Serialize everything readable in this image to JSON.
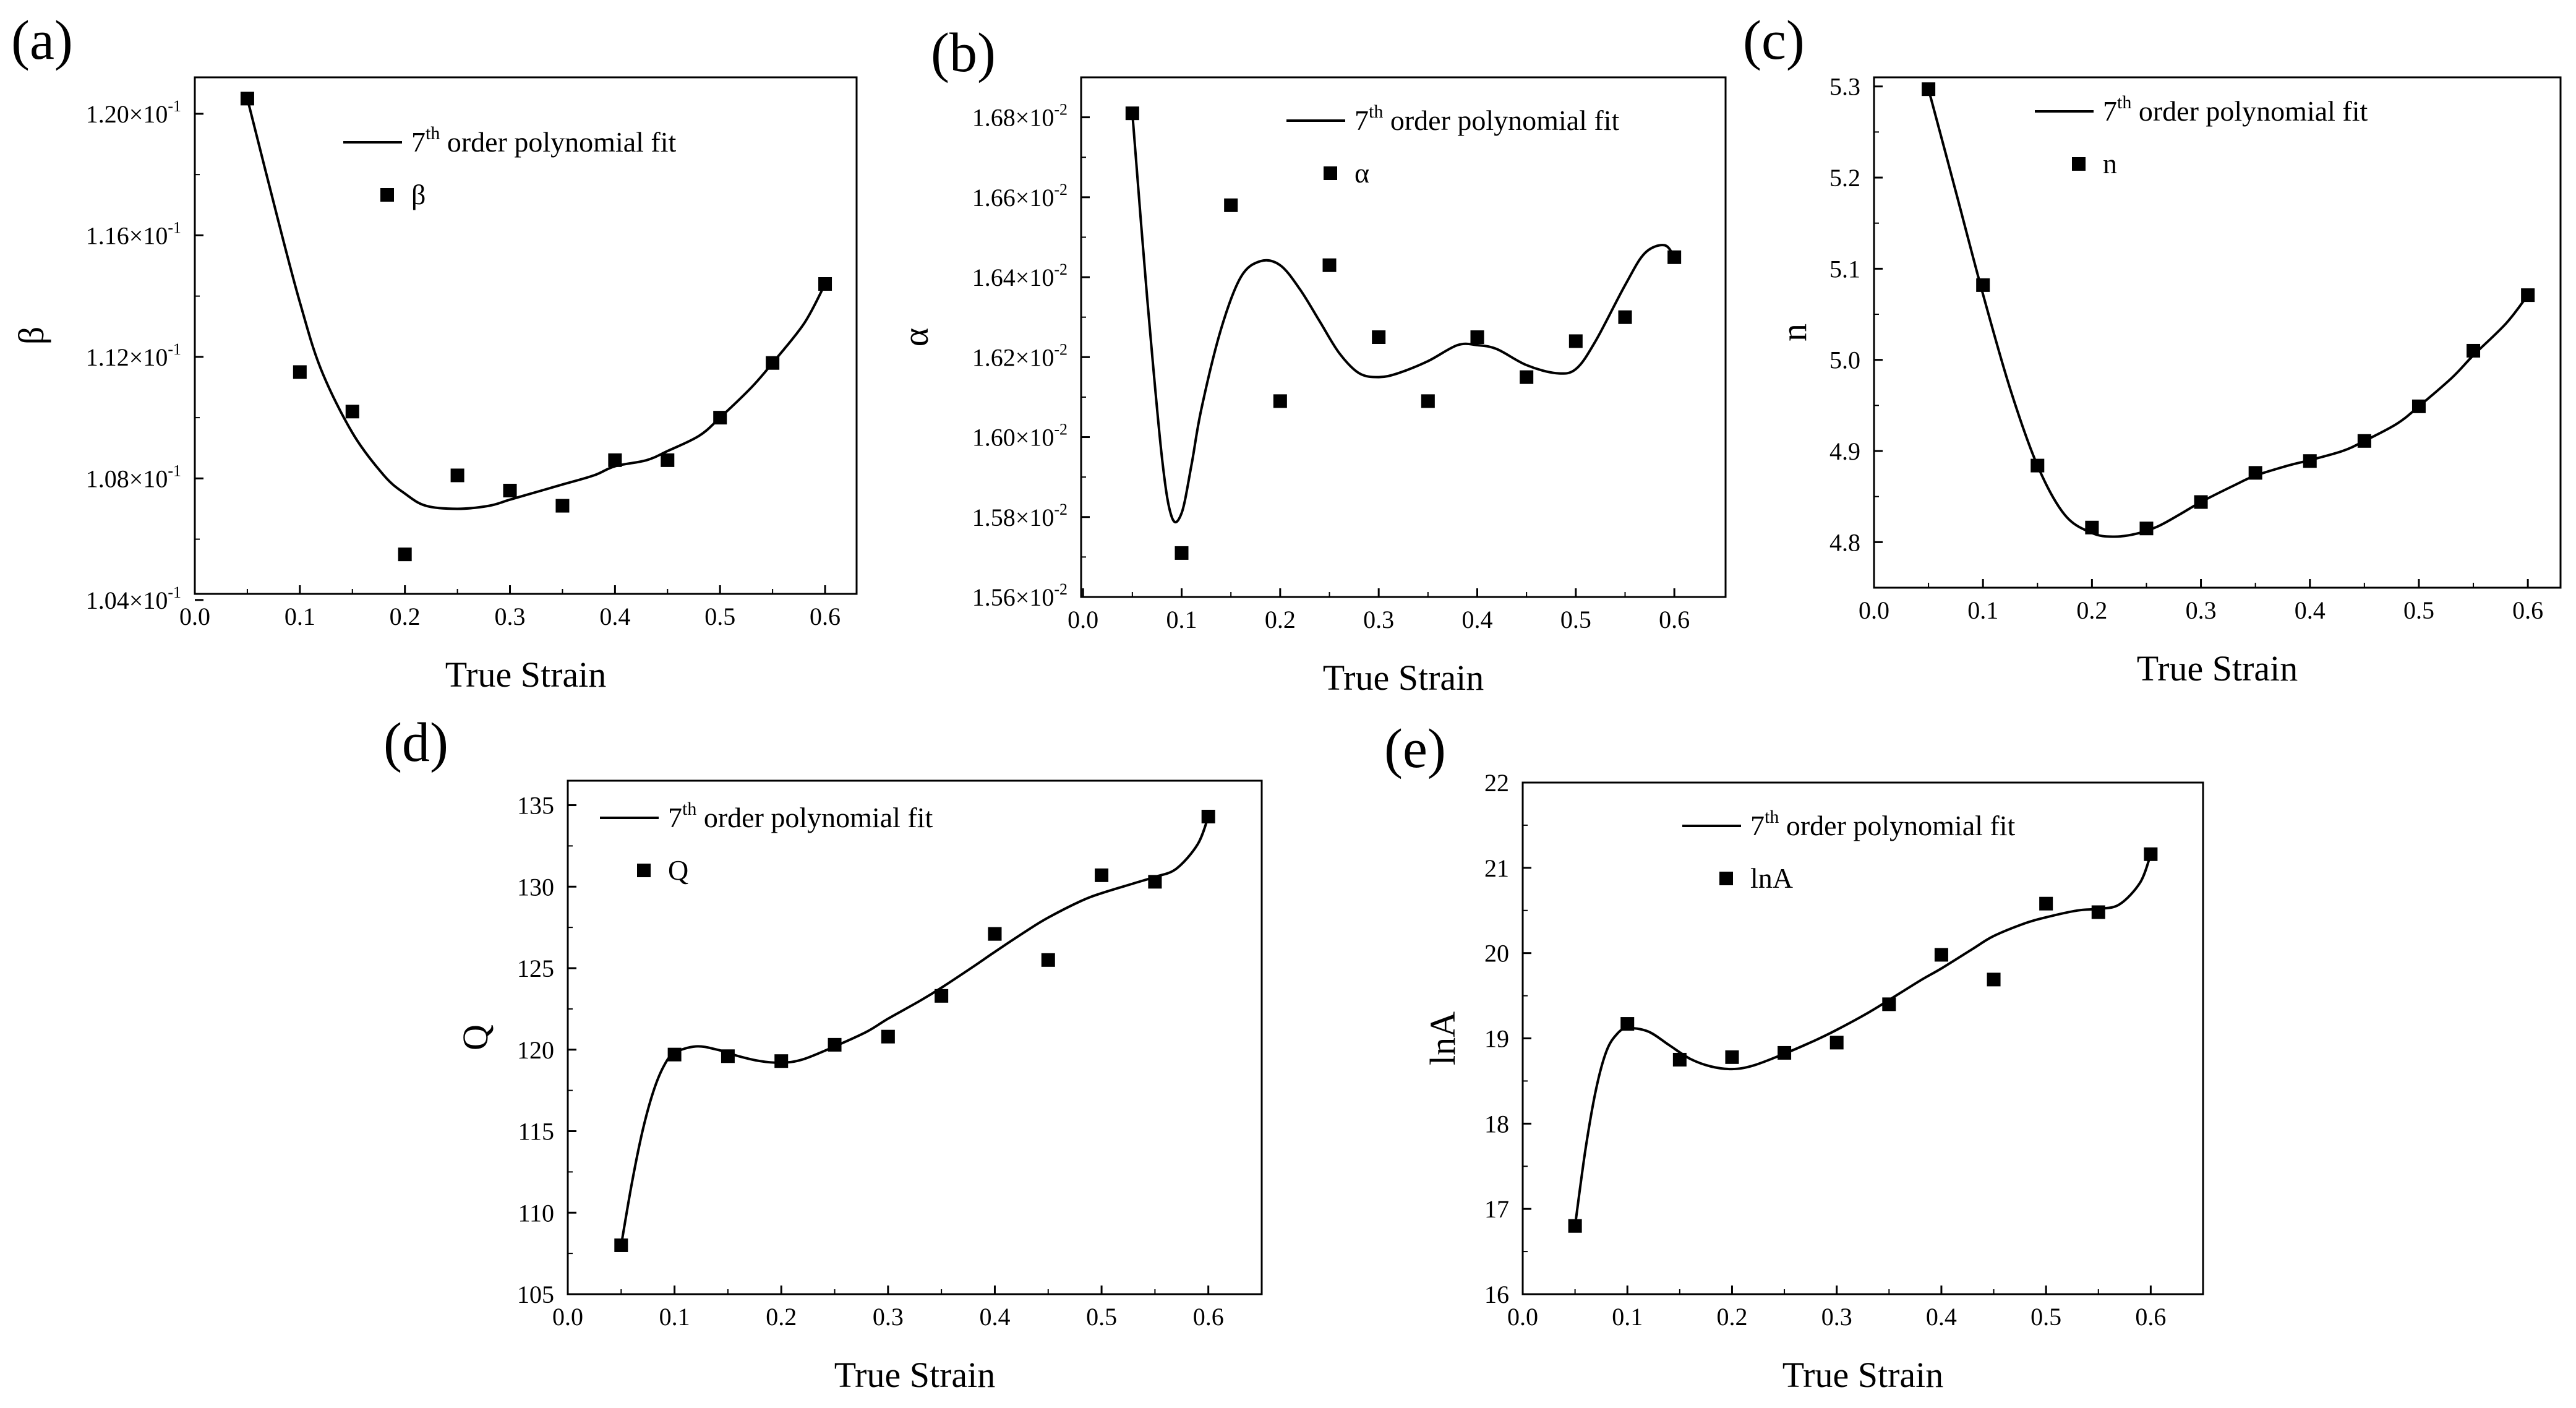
{
  "chart_data": [
    {
      "panel": "(a)",
      "type": "scatter+line",
      "xlabel": "True Strain",
      "ylabel": "β",
      "xlim": [
        0.0,
        0.63
      ],
      "ylim": [
        0.1042,
        0.1212
      ],
      "xticks": [
        0.0,
        0.1,
        0.2,
        0.3,
        0.4,
        0.5,
        0.6
      ],
      "xtick_labels": [
        "0.0",
        "0.1",
        "0.2",
        "0.3",
        "0.4",
        "0.5",
        "0.6"
      ],
      "yticks": [
        0.104,
        0.108,
        0.112,
        0.116,
        0.12
      ],
      "ytick_labels": [
        "1.04×10",
        "1.08×10",
        "1.12×10",
        "1.16×10",
        "1.20×10"
      ],
      "ytick_exponent": "-1",
      "legend": {
        "fit_label": "7",
        "fit_sup": "th",
        "fit_rest": " order polynomial fit",
        "point_label": "β",
        "placement": "top-right"
      },
      "series": [
        {
          "name": "β",
          "x": [
            0.05,
            0.1,
            0.15,
            0.2,
            0.25,
            0.3,
            0.35,
            0.4,
            0.45,
            0.5,
            0.55,
            0.6
          ],
          "y": [
            0.1205,
            0.1115,
            0.1102,
            0.1055,
            0.1081,
            0.1076,
            0.1071,
            0.1086,
            0.1086,
            0.11,
            0.1118,
            0.1144
          ]
        },
        {
          "name": "7th order polynomial fit",
          "x": [
            0.05,
            0.08,
            0.1,
            0.12,
            0.15,
            0.18,
            0.2,
            0.22,
            0.25,
            0.28,
            0.3,
            0.33,
            0.35,
            0.38,
            0.4,
            0.43,
            0.45,
            0.48,
            0.5,
            0.53,
            0.55,
            0.58,
            0.6
          ],
          "y": [
            0.1205,
            0.1164,
            0.1138,
            0.1116,
            0.1095,
            0.1081,
            0.1075,
            0.1071,
            0.107,
            0.1071,
            0.1073,
            0.1076,
            0.1078,
            0.1081,
            0.1084,
            0.1086,
            0.1089,
            0.1094,
            0.11,
            0.111,
            0.1118,
            0.1131,
            0.1144
          ]
        }
      ]
    },
    {
      "panel": "(b)",
      "type": "scatter+line",
      "xlabel": "True Strain",
      "ylabel": "α",
      "xlim": [
        -0.002,
        0.652
      ],
      "ylim": [
        0.0156,
        0.0169
      ],
      "xticks": [
        0.0,
        0.1,
        0.2,
        0.3,
        0.4,
        0.5,
        0.6
      ],
      "xtick_labels": [
        "0.0",
        "0.1",
        "0.2",
        "0.3",
        "0.4",
        "0.5",
        "0.6"
      ],
      "yticks": [
        0.0156,
        0.0158,
        0.016,
        0.0162,
        0.0164,
        0.0166,
        0.0168
      ],
      "ytick_labels": [
        "1.56×10",
        "1.58×10",
        "1.60×10",
        "1.62×10",
        "1.64×10",
        "1.66×10",
        "1.68×10"
      ],
      "ytick_exponent": "-2",
      "legend": {
        "fit_label": "7",
        "fit_sup": "th",
        "fit_rest": " order polynomial fit",
        "point_label": "α",
        "placement": "top-right"
      },
      "series": [
        {
          "name": "α",
          "x": [
            0.05,
            0.1,
            0.15,
            0.2,
            0.25,
            0.3,
            0.35,
            0.4,
            0.45,
            0.5,
            0.55,
            0.6
          ],
          "y": [
            0.01681,
            0.01571,
            0.01658,
            0.01609,
            0.01643,
            0.01625,
            0.01609,
            0.01625,
            0.01615,
            0.01624,
            0.0163,
            0.01645
          ]
        },
        {
          "name": "7th order polynomial fit",
          "x": [
            0.05,
            0.065,
            0.08,
            0.09,
            0.1,
            0.11,
            0.12,
            0.14,
            0.16,
            0.18,
            0.2,
            0.22,
            0.24,
            0.26,
            0.28,
            0.3,
            0.32,
            0.35,
            0.38,
            0.4,
            0.42,
            0.45,
            0.48,
            0.5,
            0.52,
            0.55,
            0.57,
            0.59,
            0.6
          ],
          "y": [
            0.01681,
            0.01635,
            0.01595,
            0.0158,
            0.01581,
            0.01593,
            0.01607,
            0.01627,
            0.0164,
            0.01644,
            0.01643,
            0.01637,
            0.01629,
            0.01621,
            0.01616,
            0.01615,
            0.01616,
            0.01619,
            0.01623,
            0.01623,
            0.01622,
            0.01618,
            0.01616,
            0.01617,
            0.01624,
            0.01638,
            0.01646,
            0.01648,
            0.01645
          ]
        }
      ]
    },
    {
      "panel": "(c)",
      "type": "scatter+line",
      "xlabel": "True Strain",
      "ylabel": "n",
      "xlim": [
        0.0,
        0.63
      ],
      "ylim": [
        4.75,
        5.31
      ],
      "xticks": [
        0.0,
        0.1,
        0.2,
        0.3,
        0.4,
        0.5,
        0.6
      ],
      "xtick_labels": [
        "0.0",
        "0.1",
        "0.2",
        "0.3",
        "0.4",
        "0.5",
        "0.6"
      ],
      "yticks": [
        4.8,
        4.9,
        5.0,
        5.1,
        5.2,
        5.3
      ],
      "ytick_labels": [
        "4.8",
        "4.9",
        "5.0",
        "5.1",
        "5.2",
        "5.3"
      ],
      "ytick_exponent": "",
      "legend": {
        "fit_label": "7",
        "fit_sup": "th",
        "fit_rest": " order polynomial fit",
        "point_label": "n",
        "placement": "top-right"
      },
      "series": [
        {
          "name": "n",
          "x": [
            0.05,
            0.1,
            0.15,
            0.2,
            0.25,
            0.3,
            0.35,
            0.4,
            0.45,
            0.5,
            0.55,
            0.6
          ],
          "y": [
            5.297,
            5.082,
            4.884,
            4.816,
            4.815,
            4.844,
            4.876,
            4.889,
            4.911,
            4.949,
            5.01,
            5.071
          ]
        },
        {
          "name": "7th order polynomial fit",
          "x": [
            0.05,
            0.075,
            0.1,
            0.125,
            0.15,
            0.175,
            0.2,
            0.22,
            0.24,
            0.26,
            0.28,
            0.3,
            0.33,
            0.35,
            0.38,
            0.4,
            0.43,
            0.45,
            0.48,
            0.5,
            0.53,
            0.55,
            0.58,
            0.6
          ],
          "y": [
            5.297,
            5.185,
            5.072,
            4.968,
            4.884,
            4.83,
            4.81,
            4.806,
            4.809,
            4.817,
            4.83,
            4.844,
            4.862,
            4.873,
            4.884,
            4.89,
            4.9,
            4.911,
            4.93,
            4.949,
            4.98,
            5.005,
            5.04,
            5.071
          ]
        }
      ]
    },
    {
      "panel": "(d)",
      "type": "scatter+line",
      "xlabel": "True Strain",
      "ylabel": "Q",
      "xlim": [
        0.0,
        0.65
      ],
      "ylim": [
        105,
        136.5
      ],
      "xticks": [
        0.0,
        0.1,
        0.2,
        0.3,
        0.4,
        0.5,
        0.6
      ],
      "xtick_labels": [
        "0.0",
        "0.1",
        "0.2",
        "0.3",
        "0.4",
        "0.5",
        "0.6"
      ],
      "yticks": [
        105,
        110,
        115,
        120,
        125,
        130,
        135
      ],
      "ytick_labels": [
        "105",
        "110",
        "115",
        "120",
        "125",
        "130",
        "135"
      ],
      "ytick_exponent": "",
      "legend": {
        "fit_label": "7",
        "fit_sup": "th",
        "fit_rest": " order polynomial fit",
        "point_label": "Q",
        "placement": "top-left"
      },
      "series": [
        {
          "name": "Q",
          "x": [
            0.05,
            0.1,
            0.15,
            0.2,
            0.25,
            0.3,
            0.35,
            0.4,
            0.45,
            0.5,
            0.55,
            0.6
          ],
          "y": [
            108.0,
            119.7,
            119.6,
            119.3,
            120.3,
            120.8,
            123.3,
            127.1,
            125.5,
            130.7,
            130.3,
            134.3
          ]
        },
        {
          "name": "7th order polynomial fit",
          "x": [
            0.05,
            0.06,
            0.07,
            0.08,
            0.09,
            0.1,
            0.12,
            0.14,
            0.16,
            0.18,
            0.2,
            0.22,
            0.25,
            0.28,
            0.3,
            0.33,
            0.35,
            0.38,
            0.4,
            0.43,
            0.45,
            0.48,
            0.5,
            0.53,
            0.55,
            0.57,
            0.59,
            0.6
          ],
          "y": [
            108.0,
            111.8,
            115.0,
            117.4,
            119.0,
            119.8,
            120.2,
            120.0,
            119.6,
            119.3,
            119.2,
            119.4,
            120.2,
            121.1,
            121.9,
            123.0,
            123.8,
            125.1,
            126.0,
            127.3,
            128.1,
            129.1,
            129.6,
            130.2,
            130.6,
            131.1,
            132.6,
            134.3
          ]
        }
      ]
    },
    {
      "panel": "(e)",
      "type": "scatter+line",
      "xlabel": "True Strain",
      "ylabel": "lnA",
      "xlim": [
        0.0,
        0.65
      ],
      "ylim": [
        16,
        22
      ],
      "xticks": [
        0.0,
        0.1,
        0.2,
        0.3,
        0.4,
        0.5,
        0.6
      ],
      "xtick_labels": [
        "0.0",
        "0.1",
        "0.2",
        "0.3",
        "0.4",
        "0.5",
        "0.6"
      ],
      "yticks": [
        16,
        17,
        18,
        19,
        20,
        21,
        22
      ],
      "ytick_labels": [
        "16",
        "17",
        "18",
        "19",
        "20",
        "21",
        "22"
      ],
      "ytick_exponent": "",
      "legend": {
        "fit_label": "7",
        "fit_sup": "th",
        "fit_rest": " order polynomial fit",
        "point_label": "lnA",
        "placement": "top-left"
      },
      "series": [
        {
          "name": "lnA",
          "x": [
            0.05,
            0.1,
            0.15,
            0.2,
            0.25,
            0.3,
            0.35,
            0.4,
            0.45,
            0.5,
            0.55,
            0.6
          ],
          "y": [
            16.8,
            19.17,
            18.75,
            18.78,
            18.83,
            18.95,
            19.4,
            19.98,
            19.69,
            20.58,
            20.48,
            21.16
          ]
        },
        {
          "name": "7th order polynomial fit",
          "x": [
            0.05,
            0.06,
            0.07,
            0.08,
            0.09,
            0.1,
            0.12,
            0.14,
            0.16,
            0.18,
            0.2,
            0.22,
            0.25,
            0.28,
            0.3,
            0.33,
            0.35,
            0.38,
            0.4,
            0.43,
            0.45,
            0.48,
            0.5,
            0.53,
            0.55,
            0.57,
            0.59,
            0.6
          ],
          "y": [
            16.8,
            17.7,
            18.4,
            18.85,
            19.05,
            19.12,
            19.08,
            18.92,
            18.76,
            18.67,
            18.64,
            18.68,
            18.82,
            18.98,
            19.1,
            19.3,
            19.45,
            19.68,
            19.82,
            20.05,
            20.2,
            20.35,
            20.42,
            20.5,
            20.52,
            20.57,
            20.83,
            21.16
          ]
        }
      ]
    }
  ]
}
